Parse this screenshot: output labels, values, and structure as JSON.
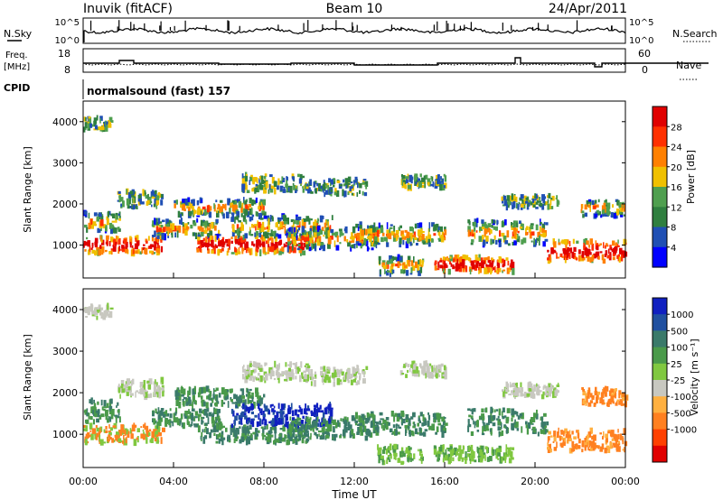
{
  "header": {
    "station": "Inuvik (fitACF)",
    "beam": "Beam 10",
    "date": "24/Apr/2011"
  },
  "summary_panels": {
    "nsky": {
      "left_label": "N.Sky",
      "left_ticks": [
        "10^5",
        "10^0"
      ],
      "right_ticks": [
        "10^5",
        "10^0"
      ],
      "right_label": "N.Search"
    },
    "freq": {
      "left_label_1": "Freq.",
      "left_label_2": "[MHz]",
      "left_ticks": [
        "18",
        "8"
      ],
      "right_ticks": [
        "60",
        "0"
      ],
      "right_label": "Nave"
    },
    "cpid": {
      "left_label": "CPID",
      "text": "normalsound (fast) 157"
    }
  },
  "chart_data": [
    {
      "type": "heatmap",
      "name": "power",
      "ylabel": "Slant Range [km]",
      "xlabel": "",
      "y_ticks": [
        "1000",
        "2000",
        "3000",
        "4000"
      ],
      "y_tick_values": [
        1000,
        2000,
        3000,
        4000
      ],
      "ylim": [
        200,
        4500
      ],
      "xlim": [
        0,
        24
      ],
      "colorbar": {
        "label": "Power [dB]",
        "tick_labels": [
          "4",
          "8",
          "12",
          "16",
          "20",
          "24",
          "28"
        ],
        "colors": [
          "#0000ff",
          "#1f4fb4",
          "#2f7f3f",
          "#4f9f4f",
          "#f0c000",
          "#ff8000",
          "#ff3000",
          "#e00000"
        ]
      }
    },
    {
      "type": "heatmap",
      "name": "velocity",
      "ylabel": "Slant Range [km]",
      "xlabel": "Time UT",
      "y_ticks": [
        "1000",
        "2000",
        "3000",
        "4000"
      ],
      "y_tick_values": [
        1000,
        2000,
        3000,
        4000
      ],
      "ylim": [
        200,
        4500
      ],
      "xlim": [
        0,
        24
      ],
      "x_ticks": [
        "00:00",
        "04:00",
        "08:00",
        "12:00",
        "16:00",
        "20:00",
        "00:00"
      ],
      "x_tick_values": [
        0,
        4,
        8,
        12,
        16,
        20,
        24
      ],
      "colorbar": {
        "label": "Velocity [m s⁻¹]",
        "tick_labels": [
          "1000",
          "500",
          "100",
          "25",
          "-25",
          "-100",
          "-500",
          "-1000"
        ],
        "colors": [
          "#1020c0",
          "#2050a0",
          "#3a7a6a",
          "#4a9a4a",
          "#80c840",
          "#c8c8c0",
          "#ffb040",
          "#ff8020",
          "#ff4000",
          "#e00000"
        ]
      }
    }
  ],
  "scatter_bands": [
    {
      "t0": 0.0,
      "t1": 1.6,
      "r0": 1300,
      "r1": 1800
    },
    {
      "t0": 0.0,
      "t1": 3.5,
      "r0": 800,
      "r1": 1200
    },
    {
      "t0": 1.5,
      "t1": 3.5,
      "r0": 1900,
      "r1": 2300
    },
    {
      "t0": 3.0,
      "t1": 6.0,
      "r0": 1200,
      "r1": 1600
    },
    {
      "t0": 4.0,
      "t1": 8.0,
      "r0": 1700,
      "r1": 2100
    },
    {
      "t0": 5.0,
      "t1": 10.0,
      "r0": 800,
      "r1": 1200
    },
    {
      "t0": 6.5,
      "t1": 11.0,
      "r0": 1200,
      "r1": 1700
    },
    {
      "t0": 7.0,
      "t1": 10.0,
      "r0": 2300,
      "r1": 2700
    },
    {
      "t0": 9.0,
      "t1": 13.0,
      "r0": 900,
      "r1": 1400
    },
    {
      "t0": 10.0,
      "t1": 12.5,
      "r0": 2200,
      "r1": 2600
    },
    {
      "t0": 12.0,
      "t1": 16.0,
      "r0": 1000,
      "r1": 1500
    },
    {
      "t0": 13.0,
      "t1": 15.0,
      "r0": 300,
      "r1": 700
    },
    {
      "t0": 14.0,
      "t1": 16.0,
      "r0": 2400,
      "r1": 2700
    },
    {
      "t0": 15.5,
      "t1": 19.0,
      "r0": 350,
      "r1": 700
    },
    {
      "t0": 17.0,
      "t1": 20.5,
      "r0": 1000,
      "r1": 1600
    },
    {
      "t0": 18.5,
      "t1": 21.0,
      "r0": 1900,
      "r1": 2200
    },
    {
      "t0": 20.5,
      "t1": 24.0,
      "r0": 600,
      "r1": 1100
    },
    {
      "t0": 22.0,
      "t1": 24.0,
      "r0": 1700,
      "r1": 2100
    },
    {
      "t0": 0.0,
      "t1": 1.2,
      "r0": 3800,
      "r1": 4100
    }
  ]
}
